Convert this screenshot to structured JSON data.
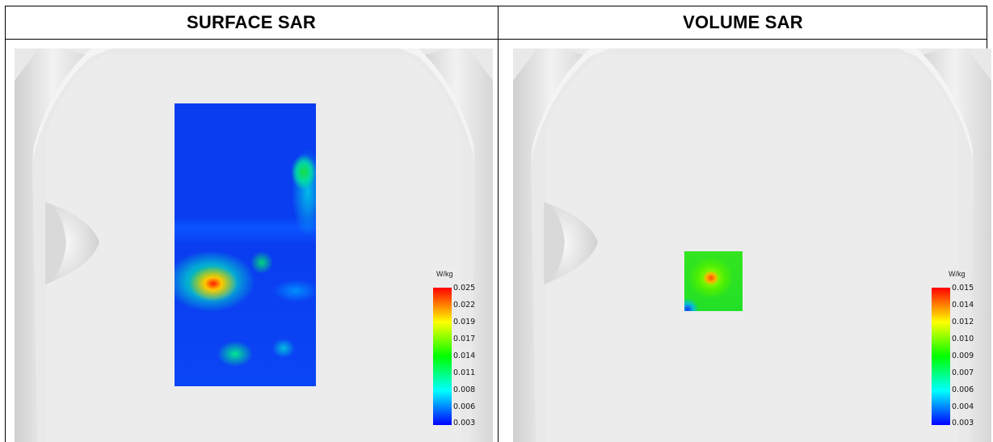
{
  "panels": [
    {
      "title": "SURFACE SAR",
      "legend": {
        "unit": "W/kg",
        "ticks": [
          "0.025",
          "0.022",
          "0.019",
          "0.017",
          "0.014",
          "0.011",
          "0.008",
          "0.006",
          "0.003"
        ]
      }
    },
    {
      "title": "VOLUME SAR",
      "legend": {
        "unit": "W/kg",
        "ticks": [
          "0.015",
          "0.014",
          "0.012",
          "0.010",
          "0.009",
          "0.007",
          "0.006",
          "0.004",
          "0.003"
        ]
      }
    }
  ],
  "colors": {
    "scale": [
      "#ff0000",
      "#ffff00",
      "#00ff00",
      "#00ffff",
      "#0000ff"
    ]
  }
}
